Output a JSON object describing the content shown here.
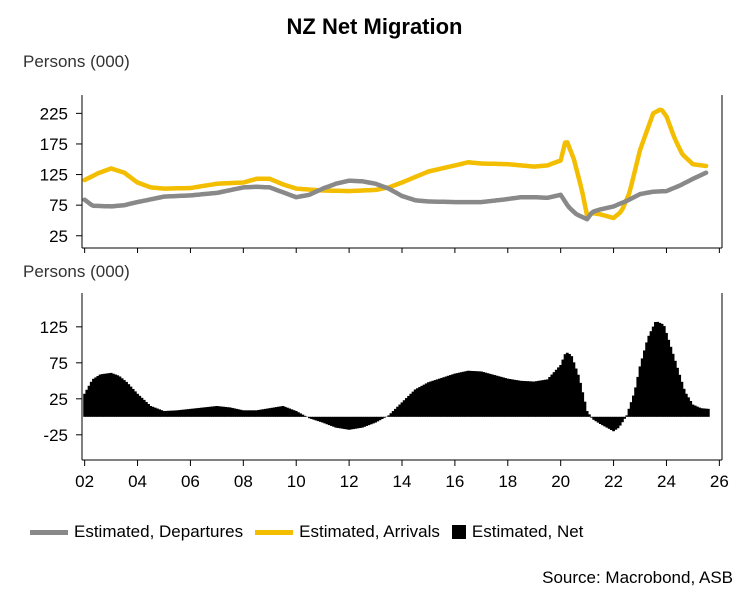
{
  "title": "NZ Net Migration",
  "source": "Source: Macrobond, ASB",
  "colors": {
    "departures": "#898989",
    "arrivals": "#f4be00",
    "net": "#000000",
    "axis": "#000000"
  },
  "legend": [
    {
      "label": "Estimated, Departures",
      "key": "departures",
      "style": "line"
    },
    {
      "label": "Estimated, Arrivals",
      "key": "arrivals",
      "style": "line"
    },
    {
      "label": "Estimated, Net",
      "key": "net",
      "style": "box"
    }
  ],
  "chart_data": [
    {
      "type": "line",
      "panel": "top",
      "title": "NZ Net Migration",
      "ylabel": "Persons (000)",
      "xlabel": "",
      "xlim": [
        2001.9,
        2026.1
      ],
      "ylim": [
        5,
        255
      ],
      "yticks": [
        25,
        75,
        125,
        175,
        225
      ],
      "grid": false,
      "series": [
        {
          "name": "Estimated, Arrivals",
          "x": [
            2002.0,
            2002.5,
            2003.0,
            2003.5,
            2004.0,
            2004.5,
            2005.0,
            2006.0,
            2007.0,
            2008.0,
            2008.5,
            2009.0,
            2009.5,
            2010.0,
            2011.0,
            2012.0,
            2013.0,
            2013.5,
            2014.0,
            2015.0,
            2016.0,
            2016.5,
            2017.0,
            2018.0,
            2019.0,
            2019.5,
            2020.0,
            2020.2,
            2020.5,
            2020.8,
            2021.0,
            2021.2,
            2021.5,
            2022.0,
            2022.3,
            2022.6,
            2023.0,
            2023.5,
            2023.8,
            2024.0,
            2024.3,
            2024.6,
            2025.0,
            2025.5
          ],
          "values": [
            116,
            127,
            135,
            128,
            112,
            104,
            102,
            103,
            110,
            112,
            118,
            118,
            109,
            102,
            99,
            98,
            100,
            104,
            112,
            130,
            140,
            145,
            143,
            142,
            138,
            140,
            148,
            183,
            150,
            100,
            58,
            62,
            60,
            54,
            65,
            95,
            165,
            225,
            232,
            220,
            185,
            158,
            142,
            139
          ]
        },
        {
          "name": "Estimated, Departures",
          "x": [
            2002.0,
            2002.3,
            2003.0,
            2003.5,
            2004.0,
            2005.0,
            2006.0,
            2007.0,
            2008.0,
            2008.5,
            2009.0,
            2009.5,
            2010.0,
            2010.5,
            2011.0,
            2011.5,
            2012.0,
            2012.5,
            2013.0,
            2013.5,
            2014.0,
            2014.5,
            2015.0,
            2016.0,
            2017.0,
            2018.0,
            2018.5,
            2019.0,
            2019.5,
            2020.0,
            2020.3,
            2020.6,
            2021.0,
            2021.2,
            2021.5,
            2022.0,
            2022.5,
            2023.0,
            2023.5,
            2024.0,
            2024.5,
            2025.0,
            2025.5
          ],
          "values": [
            84,
            74,
            73,
            75,
            80,
            89,
            91,
            95,
            104,
            105,
            104,
            96,
            88,
            92,
            102,
            110,
            115,
            114,
            110,
            102,
            90,
            83,
            81,
            80,
            80,
            85,
            88,
            88,
            87,
            92,
            72,
            60,
            52,
            64,
            68,
            73,
            82,
            93,
            97,
            98,
            107,
            118,
            128
          ]
        }
      ]
    },
    {
      "type": "area",
      "panel": "bottom",
      "ylabel": "Persons (000)",
      "xlabel": "",
      "xlim": [
        2001.9,
        2026.1
      ],
      "ylim": [
        -60,
        172
      ],
      "yticks": [
        -25,
        25,
        75,
        125
      ],
      "xticks": [
        2002,
        2004,
        2006,
        2008,
        2010,
        2012,
        2014,
        2016,
        2018,
        2020,
        2022,
        2024,
        2026
      ],
      "xticklabels": [
        "02",
        "04",
        "06",
        "08",
        "10",
        "12",
        "14",
        "16",
        "18",
        "20",
        "22",
        "24",
        "26"
      ],
      "grid": false,
      "series": [
        {
          "name": "Estimated, Net",
          "x": [
            2002.0,
            2002.3,
            2002.6,
            2003.0,
            2003.3,
            2003.6,
            2004.0,
            2004.5,
            2005.0,
            2005.5,
            2006.0,
            2006.5,
            2007.0,
            2007.5,
            2008.0,
            2008.5,
            2009.0,
            2009.5,
            2010.0,
            2010.5,
            2011.0,
            2011.5,
            2012.0,
            2012.5,
            2013.0,
            2013.5,
            2014.0,
            2014.5,
            2015.0,
            2015.5,
            2016.0,
            2016.5,
            2017.0,
            2017.5,
            2018.0,
            2018.5,
            2019.0,
            2019.5,
            2020.0,
            2020.2,
            2020.4,
            2020.7,
            2021.0,
            2021.2,
            2021.5,
            2022.0,
            2022.2,
            2022.5,
            2022.8,
            2023.0,
            2023.3,
            2023.6,
            2023.9,
            2024.1,
            2024.4,
            2024.7,
            2025.0,
            2025.3,
            2025.6
          ],
          "values": [
            32,
            52,
            59,
            61,
            57,
            48,
            32,
            15,
            8,
            9,
            11,
            13,
            15,
            13,
            9,
            9,
            12,
            15,
            8,
            -2,
            -8,
            -15,
            -18,
            -15,
            -8,
            2,
            20,
            38,
            48,
            54,
            60,
            64,
            63,
            58,
            53,
            50,
            49,
            52,
            72,
            90,
            86,
            55,
            8,
            -3,
            -10,
            -20,
            -15,
            2,
            35,
            70,
            110,
            133,
            128,
            105,
            70,
            35,
            17,
            12,
            11
          ]
        }
      ]
    }
  ]
}
